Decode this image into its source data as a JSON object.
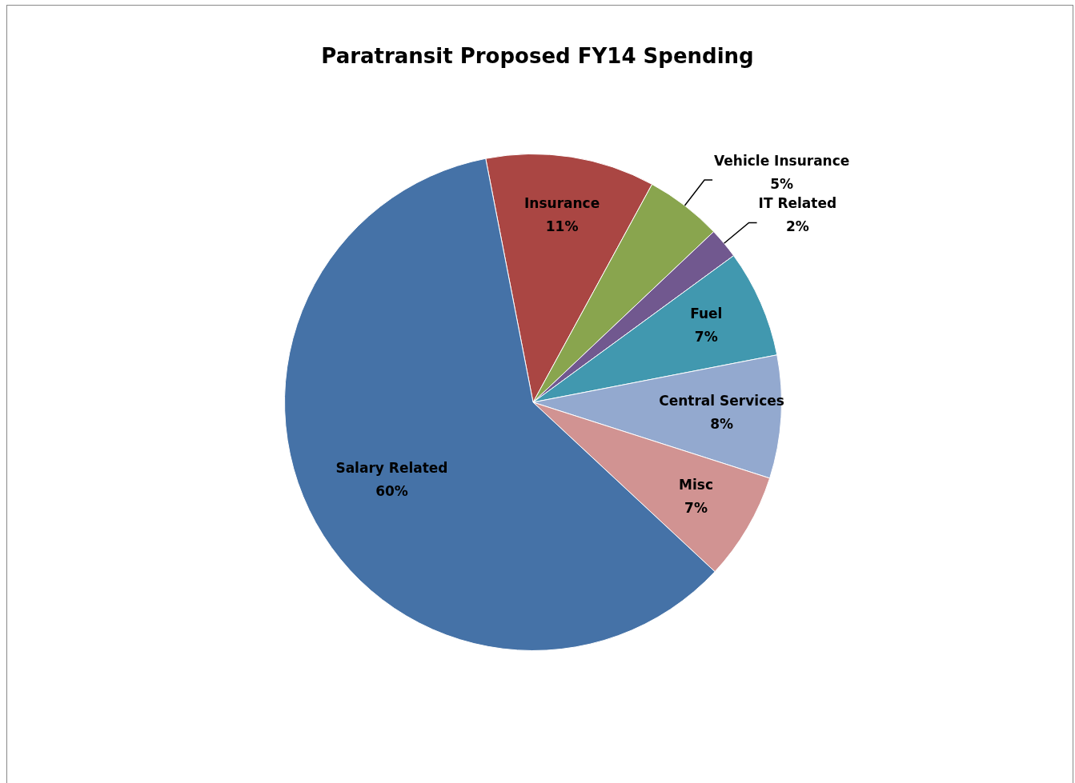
{
  "chart_data": {
    "type": "pie",
    "title": "Paratransit Proposed FY14 Spending",
    "categories": [
      "Insurance",
      "Vehicle Insurance",
      "IT Related",
      "Fuel",
      "Central Services",
      "Misc",
      "Salary Related"
    ],
    "values": [
      11,
      5,
      2,
      7,
      8,
      7,
      60
    ],
    "colors": [
      "#aa4643",
      "#89a54e",
      "#71588f",
      "#4198af",
      "#93a9cf",
      "#d19392",
      "#4572a7"
    ],
    "value_labels": [
      "11%",
      "5%",
      "2%",
      "7%",
      "8%",
      "7%",
      "60%"
    ],
    "legend": false
  }
}
